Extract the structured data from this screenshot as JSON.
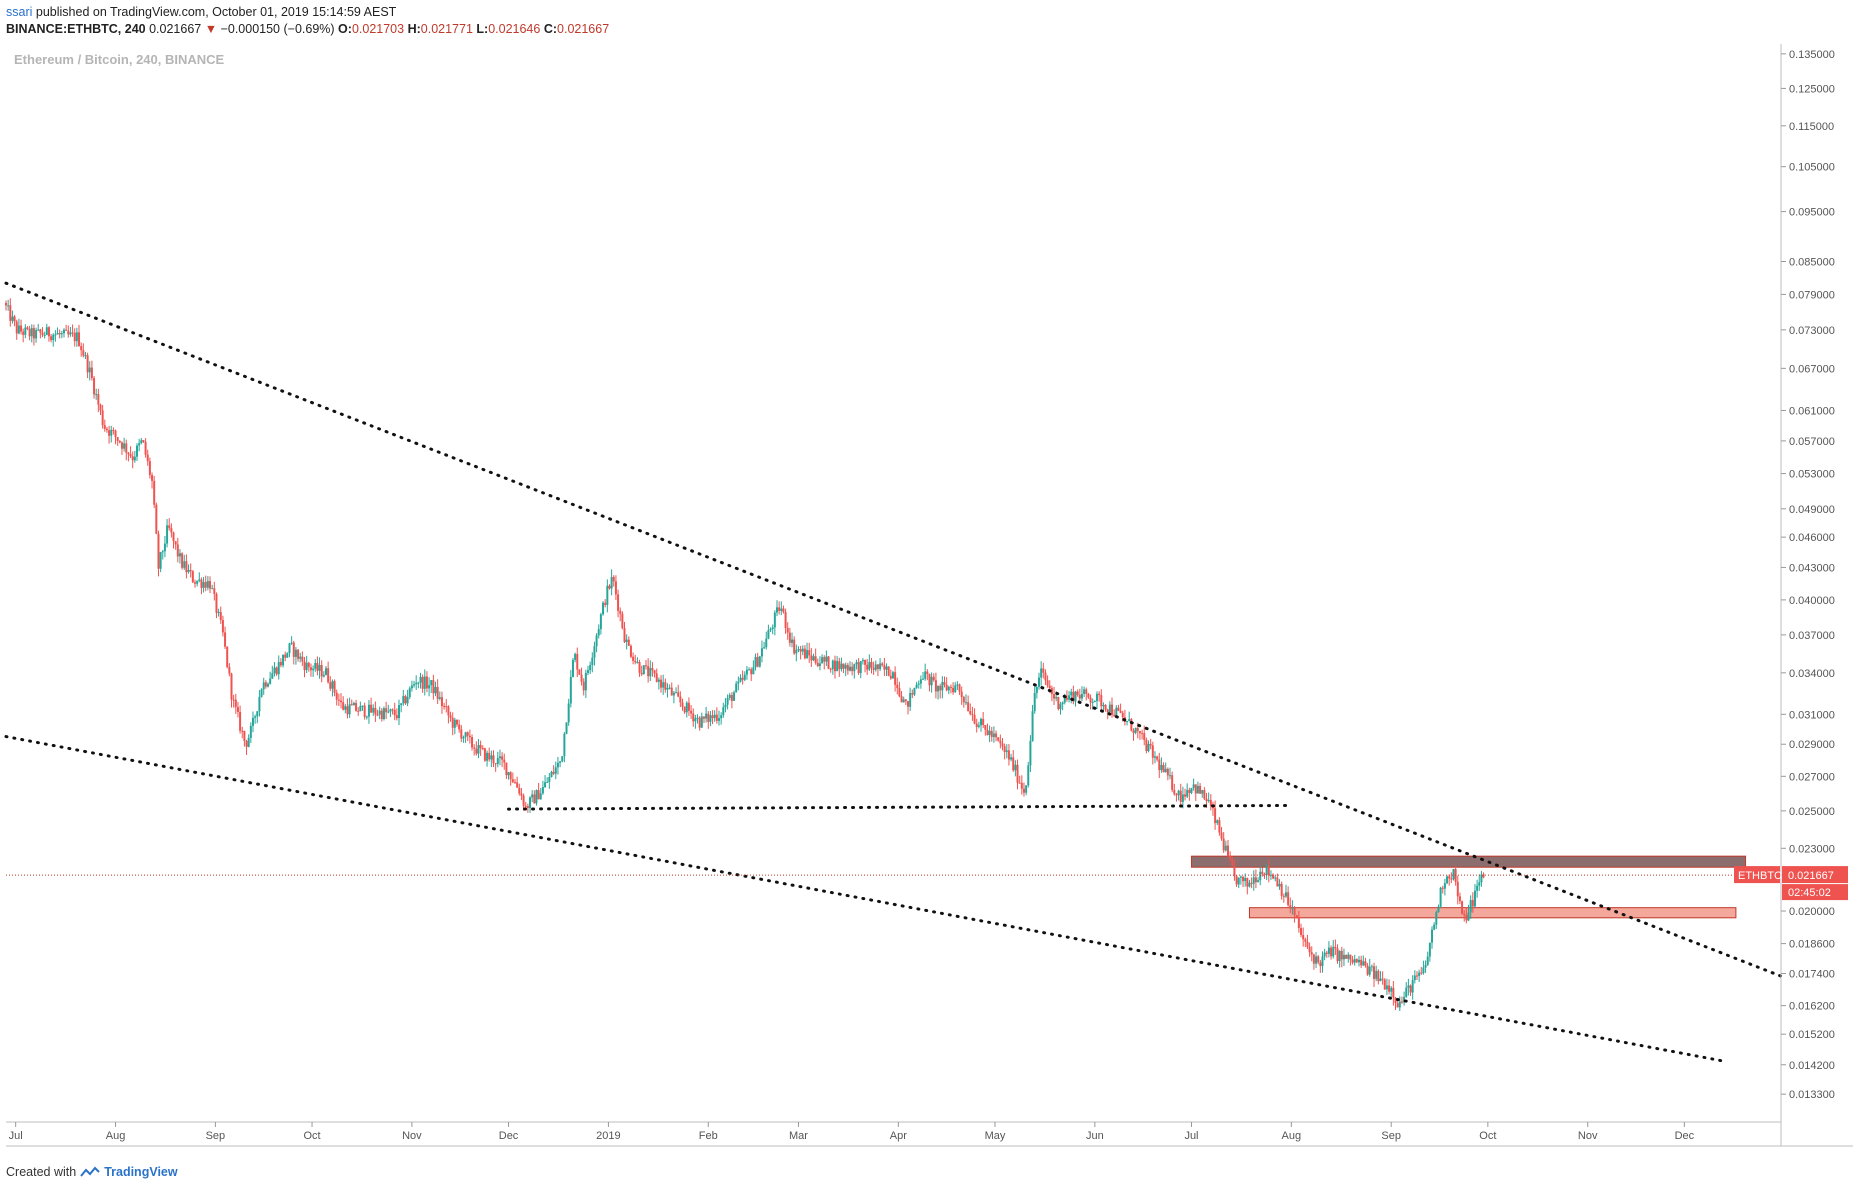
{
  "header": {
    "line1_user": "ssari",
    "line1_rest": "published on TradingView.com, October 01, 2019 15:14:59 AEST",
    "symbol": "BINANCE:ETHBTC, 240",
    "last": "0.021667",
    "change": "−0.000150 (−0.69%)",
    "o_label": "O:",
    "o_value": "0.021703",
    "h_label": "H:",
    "h_value": "0.021771",
    "l_label": "L:",
    "l_value": "0.021646",
    "c_label": "C:",
    "c_value": "0.021667"
  },
  "watermark": "Ethereum / Bitcoin, 240, BINANCE",
  "footer": {
    "created_with": "Created with",
    "brand": "TradingView"
  },
  "badges": {
    "symbol": "ETHBTC",
    "price": "0.021667",
    "countdown": "02:45:02"
  },
  "colors": {
    "up": "#26a69a",
    "down": "#ef5350",
    "resistance_fill": "#8d6e6e",
    "resistance_stroke": "#c0392b",
    "support_fill": "#f4a79b",
    "price_line": "#c0392b",
    "trendline": "#111111"
  },
  "chart_data": {
    "type": "candlestick",
    "title": "",
    "xlabel": "",
    "ylabel": "",
    "y_scale": "log",
    "ylim": [
      0.0125,
      0.138
    ],
    "xlim": [
      "2018-06-28",
      "2019-12-31"
    ],
    "grid": false,
    "x_ticks": [
      {
        "label": "Jul",
        "date": "2018-07-01"
      },
      {
        "label": "Aug",
        "date": "2018-08-01"
      },
      {
        "label": "Sep",
        "date": "2018-09-01"
      },
      {
        "label": "Oct",
        "date": "2018-10-01"
      },
      {
        "label": "Nov",
        "date": "2018-11-01"
      },
      {
        "label": "Dec",
        "date": "2018-12-01"
      },
      {
        "label": "2019",
        "date": "2019-01-01"
      },
      {
        "label": "Feb",
        "date": "2019-02-01"
      },
      {
        "label": "Mar",
        "date": "2019-03-01"
      },
      {
        "label": "Apr",
        "date": "2019-04-01"
      },
      {
        "label": "May",
        "date": "2019-05-01"
      },
      {
        "label": "Jun",
        "date": "2019-06-01"
      },
      {
        "label": "Jul",
        "date": "2019-07-01"
      },
      {
        "label": "Aug",
        "date": "2019-08-01"
      },
      {
        "label": "Sep",
        "date": "2019-09-01"
      },
      {
        "label": "Oct",
        "date": "2019-10-01"
      },
      {
        "label": "Nov",
        "date": "2019-11-01"
      },
      {
        "label": "Dec",
        "date": "2019-12-01"
      }
    ],
    "y_ticks": [
      {
        "label": "0.135000",
        "value": 0.135
      },
      {
        "label": "0.125000",
        "value": 0.125
      },
      {
        "label": "0.115000",
        "value": 0.115
      },
      {
        "label": "0.105000",
        "value": 0.105
      },
      {
        "label": "0.095000",
        "value": 0.095
      },
      {
        "label": "0.085000",
        "value": 0.085
      },
      {
        "label": "0.079000",
        "value": 0.079
      },
      {
        "label": "0.073000",
        "value": 0.073
      },
      {
        "label": "0.067000",
        "value": 0.067
      },
      {
        "label": "0.061000",
        "value": 0.061
      },
      {
        "label": "0.057000",
        "value": 0.057
      },
      {
        "label": "0.053000",
        "value": 0.053
      },
      {
        "label": "0.049000",
        "value": 0.049
      },
      {
        "label": "0.046000",
        "value": 0.046
      },
      {
        "label": "0.043000",
        "value": 0.043
      },
      {
        "label": "0.040000",
        "value": 0.04
      },
      {
        "label": "0.037000",
        "value": 0.037
      },
      {
        "label": "0.034000",
        "value": 0.034
      },
      {
        "label": "0.031000",
        "value": 0.031
      },
      {
        "label": "0.029000",
        "value": 0.029
      },
      {
        "label": "0.027000",
        "value": 0.027
      },
      {
        "label": "0.025000",
        "value": 0.025
      },
      {
        "label": "0.023000",
        "value": 0.023
      },
      {
        "label": "0.020000",
        "value": 0.02
      },
      {
        "label": "0.018600",
        "value": 0.0186
      },
      {
        "label": "0.017400",
        "value": 0.0174
      },
      {
        "label": "0.016200",
        "value": 0.0162
      },
      {
        "label": "0.015200",
        "value": 0.0152
      },
      {
        "label": "0.014200",
        "value": 0.0142
      },
      {
        "label": "0.013300",
        "value": 0.0133
      }
    ],
    "price_path": [
      [
        "2018-06-28",
        0.0775
      ],
      [
        "2018-07-02",
        0.073
      ],
      [
        "2018-07-07",
        0.0722
      ],
      [
        "2018-07-12",
        0.0725
      ],
      [
        "2018-07-17",
        0.072
      ],
      [
        "2018-07-21",
        0.0718
      ],
      [
        "2018-07-25",
        0.066
      ],
      [
        "2018-07-29",
        0.059
      ],
      [
        "2018-08-03",
        0.057
      ],
      [
        "2018-08-07",
        0.055
      ],
      [
        "2018-08-10",
        0.057
      ],
      [
        "2018-08-13",
        0.052
      ],
      [
        "2018-08-15",
        0.043
      ],
      [
        "2018-08-18",
        0.047
      ],
      [
        "2018-08-22",
        0.0435
      ],
      [
        "2018-08-26",
        0.0418
      ],
      [
        "2018-08-31",
        0.0415
      ],
      [
        "2018-09-04",
        0.037
      ],
      [
        "2018-09-07",
        0.032
      ],
      [
        "2018-09-11",
        0.029
      ],
      [
        "2018-09-13",
        0.03
      ],
      [
        "2018-09-16",
        0.033
      ],
      [
        "2018-09-21",
        0.0345
      ],
      [
        "2018-09-25",
        0.036
      ],
      [
        "2018-09-30",
        0.0345
      ],
      [
        "2018-10-06",
        0.034
      ],
      [
        "2018-10-11",
        0.0315
      ],
      [
        "2018-10-20",
        0.0312
      ],
      [
        "2018-10-28",
        0.031
      ],
      [
        "2018-11-03",
        0.0335
      ],
      [
        "2018-11-08",
        0.033
      ],
      [
        "2018-11-14",
        0.0305
      ],
      [
        "2018-11-20",
        0.029
      ],
      [
        "2018-11-25",
        0.0282
      ],
      [
        "2018-11-30",
        0.0278
      ],
      [
        "2018-12-05",
        0.0262
      ],
      [
        "2018-12-07",
        0.0252
      ],
      [
        "2018-12-12",
        0.0262
      ],
      [
        "2018-12-18",
        0.028
      ],
      [
        "2018-12-22",
        0.0355
      ],
      [
        "2018-12-25",
        0.033
      ],
      [
        "2018-12-28",
        0.036
      ],
      [
        "2019-01-01",
        0.0405
      ],
      [
        "2019-01-03",
        0.042
      ],
      [
        "2019-01-07",
        0.0365
      ],
      [
        "2019-01-11",
        0.0345
      ],
      [
        "2019-01-17",
        0.0335
      ],
      [
        "2019-01-24",
        0.0318
      ],
      [
        "2019-01-30",
        0.0305
      ],
      [
        "2019-02-05",
        0.031
      ],
      [
        "2019-02-11",
        0.033
      ],
      [
        "2019-02-17",
        0.035
      ],
      [
        "2019-02-21",
        0.0375
      ],
      [
        "2019-02-24",
        0.0395
      ],
      [
        "2019-02-28",
        0.036
      ],
      [
        "2019-03-07",
        0.035
      ],
      [
        "2019-03-15",
        0.0345
      ],
      [
        "2019-03-24",
        0.0345
      ],
      [
        "2019-03-31",
        0.034
      ],
      [
        "2019-04-04",
        0.0315
      ],
      [
        "2019-04-09",
        0.034
      ],
      [
        "2019-04-14",
        0.0328
      ],
      [
        "2019-04-20",
        0.033
      ],
      [
        "2019-04-26",
        0.0305
      ],
      [
        "2019-05-01",
        0.0295
      ],
      [
        "2019-05-06",
        0.0282
      ],
      [
        "2019-05-11",
        0.026
      ],
      [
        "2019-05-14",
        0.0325
      ],
      [
        "2019-05-16",
        0.034
      ],
      [
        "2019-05-21",
        0.0318
      ],
      [
        "2019-05-27",
        0.0325
      ],
      [
        "2019-06-03",
        0.032
      ],
      [
        "2019-06-09",
        0.031
      ],
      [
        "2019-06-14",
        0.03
      ],
      [
        "2019-06-19",
        0.0285
      ],
      [
        "2019-06-24",
        0.027
      ],
      [
        "2019-06-28",
        0.0258
      ],
      [
        "2019-07-02",
        0.0265
      ],
      [
        "2019-07-07",
        0.0255
      ],
      [
        "2019-07-11",
        0.0235
      ],
      [
        "2019-07-15",
        0.0215
      ],
      [
        "2019-07-19",
        0.0212
      ],
      [
        "2019-07-24",
        0.022
      ],
      [
        "2019-07-28",
        0.0215
      ],
      [
        "2019-08-02",
        0.02
      ],
      [
        "2019-08-06",
        0.0185
      ],
      [
        "2019-08-10",
        0.0178
      ],
      [
        "2019-08-14",
        0.0183
      ],
      [
        "2019-08-18",
        0.018
      ],
      [
        "2019-08-23",
        0.0178
      ],
      [
        "2019-08-28",
        0.0173
      ],
      [
        "2019-09-02",
        0.0168
      ],
      [
        "2019-09-04",
        0.0162
      ],
      [
        "2019-09-08",
        0.017
      ],
      [
        "2019-09-12",
        0.0175
      ],
      [
        "2019-09-15",
        0.0195
      ],
      [
        "2019-09-18",
        0.0215
      ],
      [
        "2019-09-21",
        0.0218
      ],
      [
        "2019-09-24",
        0.0195
      ],
      [
        "2019-09-27",
        0.0205
      ],
      [
        "2019-09-30",
        0.0217
      ]
    ],
    "trendlines": [
      {
        "name": "upper-descending-trendline",
        "from": [
          "2018-06-28",
          0.081
        ],
        "to": [
          "2019-12-31",
          0.0173
        ]
      },
      {
        "name": "lower-descending-trendline",
        "from": [
          "2018-06-28",
          0.0295
        ],
        "to": [
          "2019-12-14",
          0.0143
        ]
      },
      {
        "name": "horizontal-support-line",
        "from": [
          "2018-12-01",
          0.0251
        ],
        "to": [
          "2019-07-31",
          0.0253
        ]
      }
    ],
    "zones": [
      {
        "name": "resistance-zone",
        "from": "2019-07-01",
        "to": "2019-12-20",
        "y_low": 0.02205,
        "y_high": 0.0226,
        "fill": "#8d6e6e"
      },
      {
        "name": "support-zone",
        "from": "2019-07-19",
        "to": "2019-12-17",
        "y_low": 0.0197,
        "y_high": 0.02015,
        "fill": "#f4a79b"
      }
    ],
    "last_price": 0.021667
  }
}
